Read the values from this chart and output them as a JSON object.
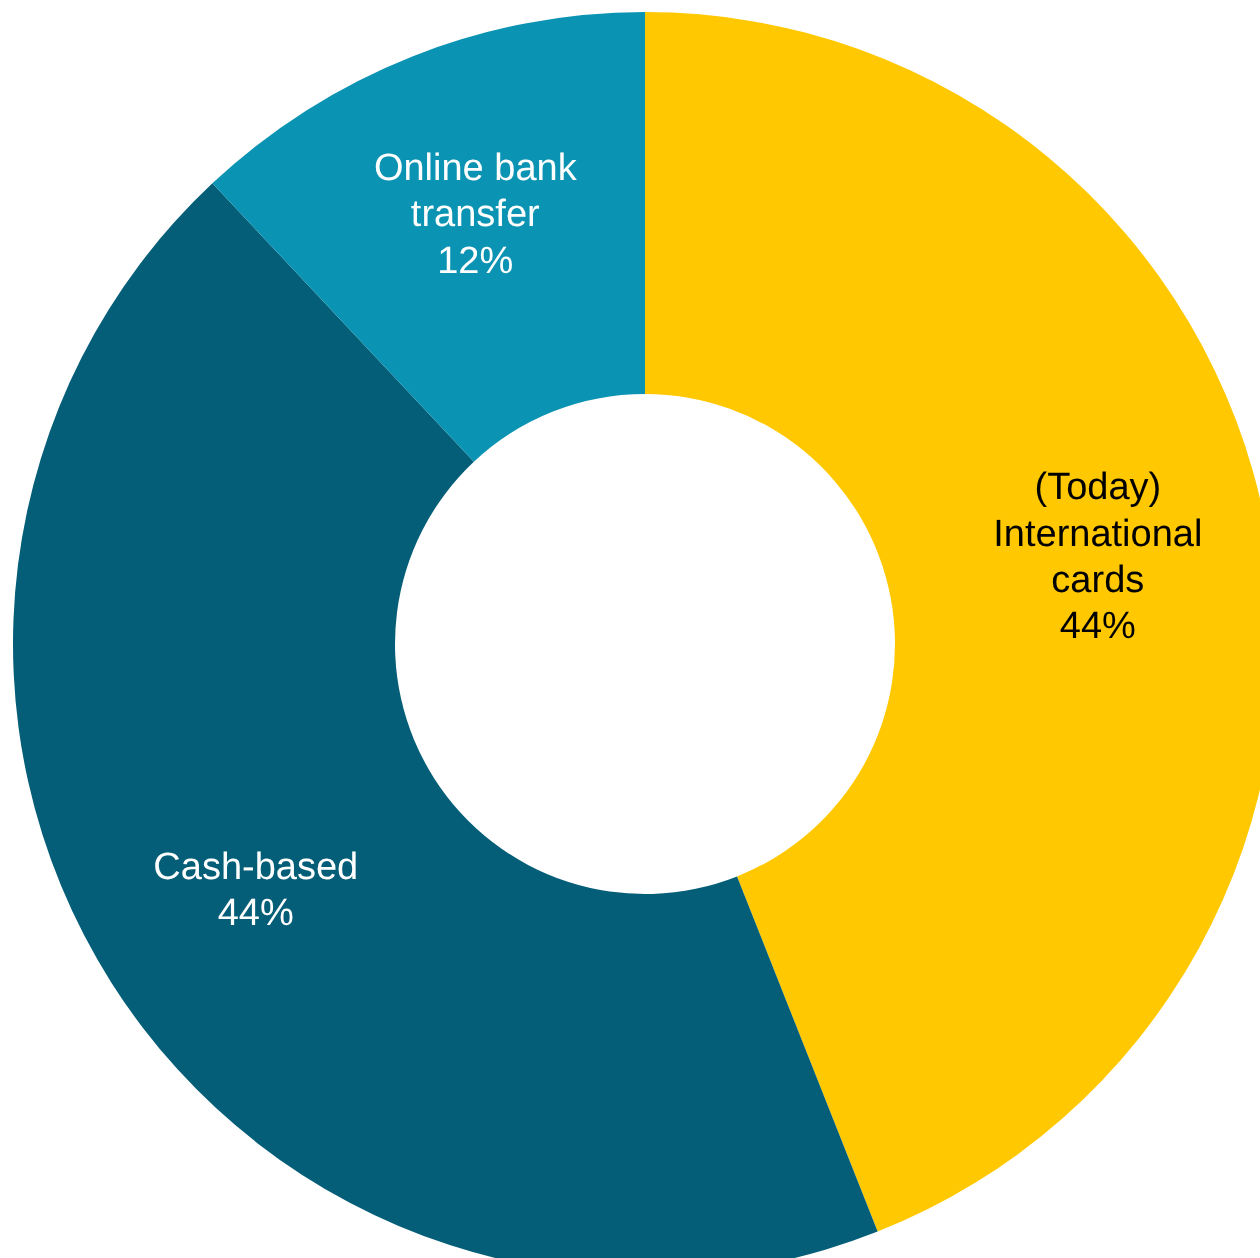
{
  "chart_data": {
    "type": "donut",
    "categories": [
      "(Today) International cards",
      "Cash-based",
      "Online bank transfer"
    ],
    "values": [
      44,
      44,
      12
    ],
    "colors": [
      "#ffc800",
      "#045e78",
      "#0a93b2"
    ],
    "value_labels": [
      "44%",
      "44%",
      "12%"
    ]
  }
}
